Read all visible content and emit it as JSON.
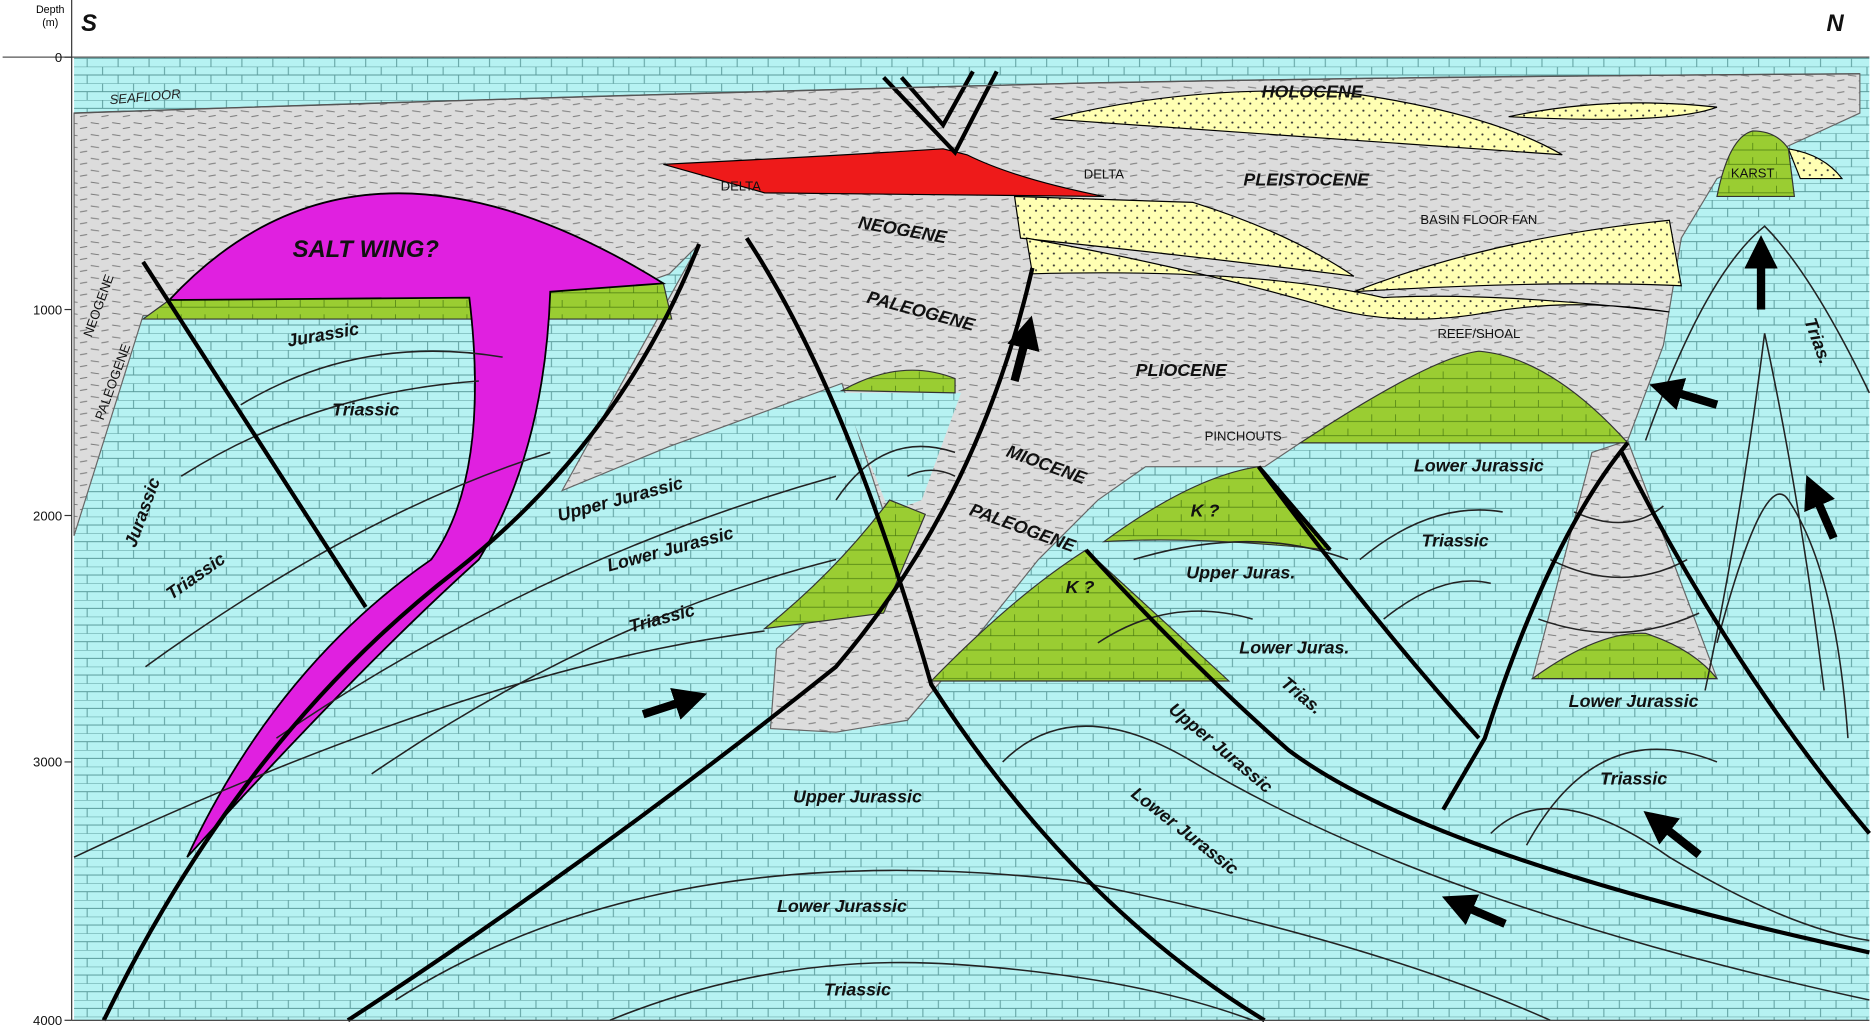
{
  "axis": {
    "title": "Depth",
    "unit": "(m)",
    "ticks": [
      0,
      1000,
      2000,
      3000,
      4000
    ]
  },
  "compass": {
    "left": "S",
    "right": "N"
  },
  "labels": [
    "SEAFLOOR",
    "HOLOCENE",
    "DELTA",
    "DELTA",
    "PLEISTOCENE",
    "KARST",
    "SALT WING?",
    "NEOGENE",
    "BASIN FLOOR FAN",
    "NEOGENE",
    "PALEOGENE",
    "Jurassic",
    "PALEOGENE",
    "Triassic",
    "REEF/SHOAL",
    "PLIOCENE",
    "Trias.",
    "Jurassic",
    "PINCHOUTS",
    "MIOCENE",
    "Lower Jurassic",
    "Upper Jurassic",
    "Triassic",
    "PALEOGENE",
    "K ?",
    "Lower Jurassic",
    "Triassic",
    "Upper Juras.",
    "K ?",
    "Triassic",
    "Lower Juras.",
    "Trias.",
    "Lower Jurassic",
    "Upper Jurassic",
    "Triassic",
    "Upper Jurassic",
    "Lower Jurassic",
    "Lower Jurassic",
    "Triassic"
  ]
}
